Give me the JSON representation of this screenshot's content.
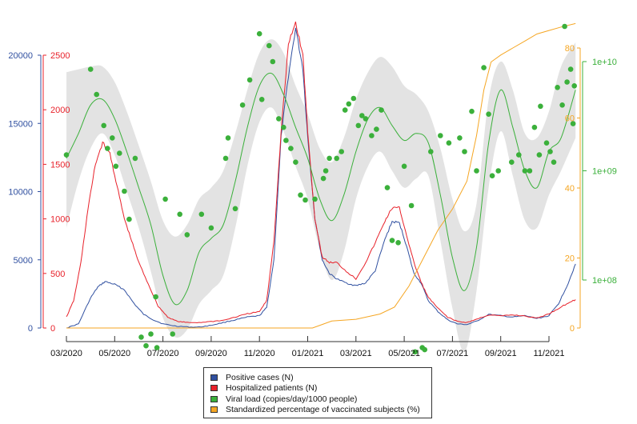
{
  "chart_data": {
    "type": "line",
    "title": "",
    "xlabel": "",
    "x_unit": "months since 03/2020",
    "x_ticks": [
      "03/2020",
      "05/2020",
      "07/2020",
      "09/2020",
      "11/2020",
      "01/2021",
      "03/2021",
      "05/2021",
      "07/2021",
      "09/2021",
      "11/2021"
    ],
    "x_range": [
      0,
      21.1
    ],
    "axes": {
      "left_blue": {
        "label": "Positive cases (N)",
        "range": [
          0,
          20000
        ],
        "ticks": [
          0,
          5000,
          10000,
          15000,
          20000
        ],
        "color": "#3050a0"
      },
      "left_red": {
        "label": "Hospitalized patients (N)",
        "range": [
          0,
          2500
        ],
        "ticks": [
          0,
          500,
          1000,
          1500,
          2000,
          2500
        ],
        "color": "#e8212a"
      },
      "right_orange": {
        "label": "Standardized percentage of vaccinated subjects (%)",
        "range": [
          0,
          80
        ],
        "ticks": [
          0,
          20,
          40,
          60,
          80
        ],
        "color": "#f5a623"
      },
      "right_green": {
        "label": "Viral load (copies/day/1000 people)",
        "scale": "log10",
        "ticks": [
          "1e+08",
          "1e+09",
          "1e+10"
        ],
        "tick_values": [
          100000000,
          1000000000,
          10000000000
        ],
        "color": "#3bb03b"
      }
    },
    "series": [
      {
        "name": "Positive cases (N)",
        "axis": "left_blue",
        "color": "#3050a0",
        "x": [
          0,
          0.5,
          1,
          1.3,
          1.6,
          2.0,
          2.4,
          2.8,
          3.2,
          3.6,
          4.0,
          4.5,
          5.0,
          5.5,
          6.0,
          6.5,
          7.0,
          7.5,
          8.0,
          8.3,
          8.6,
          8.9,
          9.2,
          9.5,
          9.8,
          10.0,
          10.3,
          10.6,
          10.9,
          11.2,
          11.6,
          12.0,
          12.4,
          12.8,
          13.2,
          13.5,
          13.8,
          14.1,
          14.4,
          14.7,
          15.0,
          15.4,
          15.8,
          16.2,
          16.6,
          17.0,
          17.5,
          18.0,
          18.5,
          19.0,
          19.5,
          20.0,
          20.4,
          20.8,
          21.1
        ],
        "values": [
          0,
          300,
          2200,
          3000,
          3400,
          3200,
          2800,
          1800,
          1000,
          600,
          300,
          150,
          80,
          60,
          200,
          400,
          600,
          800,
          900,
          1500,
          5000,
          14000,
          18500,
          22000,
          19000,
          14000,
          8000,
          5000,
          4000,
          3600,
          3300,
          3100,
          3300,
          4200,
          6500,
          7800,
          7700,
          6000,
          4000,
          3300,
          2000,
          1200,
          600,
          300,
          250,
          500,
          1000,
          900,
          800,
          900,
          700,
          900,
          1800,
          3300,
          4700
        ]
      },
      {
        "name": "Hospitalized patients (N)",
        "axis": "left_red",
        "color": "#e8212a",
        "x": [
          0,
          0.3,
          0.6,
          0.9,
          1.2,
          1.5,
          1.8,
          2.1,
          2.4,
          2.7,
          3.0,
          3.4,
          3.8,
          4.2,
          4.6,
          5.0,
          5.5,
          6.0,
          6.5,
          7.0,
          7.5,
          8.0,
          8.3,
          8.6,
          8.9,
          9.2,
          9.5,
          9.8,
          10.0,
          10.3,
          10.6,
          10.9,
          11.2,
          11.6,
          12.0,
          12.4,
          12.8,
          13.2,
          13.5,
          13.8,
          14.1,
          14.4,
          14.7,
          15.0,
          15.4,
          15.8,
          16.2,
          16.6,
          17.0,
          17.5,
          18.0,
          18.5,
          19.0,
          19.5,
          20.0,
          20.4,
          20.8,
          21.1
        ],
        "values": [
          100,
          250,
          600,
          1100,
          1500,
          1700,
          1600,
          1300,
          1000,
          800,
          600,
          400,
          200,
          100,
          60,
          50,
          50,
          60,
          70,
          100,
          130,
          150,
          250,
          800,
          1800,
          2600,
          2800,
          2500,
          1800,
          1000,
          650,
          600,
          600,
          520,
          450,
          600,
          780,
          980,
          1100,
          1100,
          850,
          600,
          420,
          280,
          180,
          100,
          60,
          50,
          80,
          120,
          110,
          120,
          110,
          90,
          130,
          180,
          230,
          260
        ]
      },
      {
        "name": "Standardized percentage of vaccinated subjects (%)",
        "axis": "right_orange",
        "color": "#f5a623",
        "x": [
          0,
          10.2,
          10.6,
          11.0,
          12.0,
          13.0,
          13.6,
          14.2,
          14.8,
          15.4,
          16.0,
          16.6,
          17.0,
          17.3,
          17.6,
          18.0,
          18.5,
          19.0,
          19.5,
          20.0,
          20.5,
          21.1
        ],
        "values": [
          0,
          0,
          1,
          2,
          2.5,
          4,
          6,
          12,
          20,
          28,
          34,
          42,
          55,
          68,
          76,
          78,
          80,
          82,
          84,
          85,
          86,
          87
        ]
      },
      {
        "name": "Viral load (copies/day/1000 people) - smoothed",
        "axis": "right_green",
        "color": "#3bb03b",
        "x": [
          0,
          0.5,
          1.0,
          1.5,
          2.0,
          2.5,
          3.0,
          3.5,
          4.0,
          4.5,
          5.0,
          5.5,
          6.0,
          6.5,
          7.0,
          7.5,
          8.0,
          8.5,
          9.0,
          9.5,
          10.0,
          10.5,
          11.0,
          11.5,
          12.0,
          12.5,
          13.0,
          13.5,
          14.0,
          14.5,
          15.0,
          15.5,
          16.0,
          16.5,
          17.0,
          17.5,
          18.0,
          18.5,
          19.0,
          19.5,
          20.0,
          20.5,
          21.1
        ],
        "values": [
          1300000000.0,
          2200000000.0,
          4000000000.0,
          4500000000.0,
          3000000000.0,
          1500000000.0,
          700000000.0,
          320000000.0,
          110000000.0,
          60000000.0,
          80000000.0,
          180000000.0,
          240000000.0,
          320000000.0,
          800000000.0,
          2500000000.0,
          6000000000.0,
          7800000000.0,
          5000000000.0,
          2500000000.0,
          1300000000.0,
          550000000.0,
          350000000.0,
          600000000.0,
          1500000000.0,
          3000000000.0,
          3800000000.0,
          2600000000.0,
          1900000000.0,
          2200000000.0,
          1800000000.0,
          600000000.0,
          160000000.0,
          80000000.0,
          200000000.0,
          1800000000.0,
          5500000000.0,
          2500000000.0,
          1000000000.0,
          700000000.0,
          1500000000.0,
          2000000000.0,
          5500000000.0
        ]
      }
    ],
    "viral_load_ci": {
      "x": [
        0,
        0.5,
        1.0,
        1.5,
        2.0,
        2.5,
        3.0,
        3.5,
        4.0,
        4.5,
        5.0,
        5.5,
        6.0,
        6.5,
        7.0,
        7.5,
        8.0,
        8.5,
        9.0,
        9.5,
        10.0,
        10.5,
        11.0,
        11.5,
        12.0,
        12.5,
        13.0,
        13.5,
        14.0,
        14.5,
        15.0,
        15.5,
        16.0,
        16.5,
        17.0,
        17.5,
        18.0,
        18.5,
        19.0,
        19.5,
        20.0,
        20.5,
        21.1
      ],
      "upper": [
        8000000000.0,
        8500000000.0,
        9000000000.0,
        9000000000.0,
        6500000000.0,
        3500000000.0,
        1700000000.0,
        800000000.0,
        350000000.0,
        250000000.0,
        320000000.0,
        550000000.0,
        700000000.0,
        1000000000.0,
        2200000000.0,
        5500000000.0,
        12000000000.0,
        16000000000.0,
        12000000000.0,
        6000000000.0,
        3300000000.0,
        1600000000.0,
        1200000000.0,
        2000000000.0,
        4500000000.0,
        8000000000.0,
        11000000000.0,
        9000000000.0,
        6000000000.0,
        5000000000.0,
        3500000000.0,
        1600000000.0,
        550000000.0,
        280000000.0,
        500000000.0,
        4500000000.0,
        10000000000.0,
        5500000000.0,
        2200000000.0,
        2000000000.0,
        3500000000.0,
        9000000000.0,
        15000000000.0
      ],
      "lower": [
        300000000.0,
        800000000.0,
        1600000000.0,
        2200000000.0,
        1400000000.0,
        650000000.0,
        300000000.0,
        120000000.0,
        45000000.0,
        30000000.0,
        35000000.0,
        60000000.0,
        80000000.0,
        110000000.0,
        300000000.0,
        1100000000.0,
        2800000000.0,
        3800000000.0,
        2300000000.0,
        1100000000.0,
        550000000.0,
        190000000.0,
        100000000.0,
        180000000.0,
        550000000.0,
        1100000000.0,
        1500000000.0,
        1000000000.0,
        700000000.0,
        850000000.0,
        900000000.0,
        230000000.0,
        55000000.0,
        22000000.0,
        80000000.0,
        700000000.0,
        2300000000.0,
        900000000.0,
        350000000.0,
        300000000.0,
        600000000.0,
        1000000000.0,
        2000000000.0
      ]
    },
    "viral_load_points": {
      "x": [
        0.0,
        1.0,
        1.25,
        1.55,
        1.7,
        1.9,
        2.05,
        2.2,
        2.4,
        2.6,
        2.85,
        3.1,
        3.3,
        3.5,
        3.7,
        3.75,
        4.1,
        4.4,
        4.7,
        5.0,
        5.6,
        6.0,
        6.6,
        6.7,
        7.0,
        7.3,
        7.6,
        8.0,
        8.1,
        8.4,
        8.55,
        8.8,
        9.0,
        9.1,
        9.3,
        9.5,
        9.7,
        9.9,
        10.3,
        10.65,
        10.75,
        10.9,
        11.2,
        11.4,
        11.55,
        11.7,
        11.9,
        12.1,
        12.25,
        12.4,
        12.65,
        12.85,
        13.05,
        13.3,
        13.5,
        13.75,
        14.0,
        14.3,
        14.45,
        14.75,
        14.85,
        15.1,
        15.5,
        15.85,
        16.3,
        16.5,
        16.8,
        17.0,
        17.3,
        17.5,
        17.65,
        17.9,
        18.45,
        18.75,
        19.0,
        19.2,
        19.4,
        19.6,
        19.65,
        19.9,
        20.05,
        20.2,
        20.35,
        20.55,
        20.65,
        20.75,
        20.9,
        21.0,
        21.05
      ],
      "values": [
        1400000000.0,
        8500000000.0,
        5000000000.0,
        2600000000.0,
        1600000000.0,
        2000000000.0,
        1100000000.0,
        1450000000.0,
        650000000.0,
        360000000.0,
        1300000000.0,
        30000000.0,
        25000000.0,
        32000000.0,
        70000000.0,
        24000000.0,
        550000000.0,
        32000000.0,
        400000000.0,
        260000000.0,
        400000000.0,
        300000000.0,
        1300000000.0,
        2000000000.0,
        450000000.0,
        4000000000.0,
        6800000000.0,
        18000000000.0,
        4500000000.0,
        14000000000.0,
        10000000000.0,
        3000000000.0,
        2500000000.0,
        1900000000.0,
        1600000000.0,
        1200000000.0,
        600000000.0,
        540000000.0,
        550000000.0,
        850000000.0,
        1000000000.0,
        1300000000.0,
        1300000000.0,
        1500000000.0,
        3600000000.0,
        4100000000.0,
        4600000000.0,
        2600000000.0,
        3200000000.0,
        3000000000.0,
        2100000000.0,
        2400000000.0,
        3600000000.0,
        700000000.0,
        230000000.0,
        220000000.0,
        1100000000.0,
        480000000.0,
        22000000.0,
        24000000.0,
        23000000.0,
        1500000000.0,
        2100000000.0,
        1800000000.0,
        2000000000.0,
        1500000000.0,
        3500000000.0,
        1000000000.0,
        8800000000.0,
        3300000000.0,
        900000000.0,
        1000000000.0,
        1200000000.0,
        1400000000.0,
        1000000000.0,
        1000000000.0,
        2500000000.0,
        1400000000.0,
        3900000000.0,
        1800000000.0,
        1500000000.0,
        1200000000.0,
        5800000000.0,
        4000000000.0,
        21000000000.0,
        6500000000.0,
        8500000000.0,
        2700000000.0,
        6000000000.0
      ]
    },
    "legend": {
      "placement": "bottom-center",
      "entries": [
        {
          "label": "Positive cases (N)",
          "color": "#3050a0"
        },
        {
          "label": "Hospitalized patients (N)",
          "color": "#e8212a"
        },
        {
          "label": "Viral load (copies/day/1000 people)",
          "color": "#3bb03b"
        },
        {
          "label": "Standardized percentage of vaccinated subjects (%)",
          "color": "#f5a623"
        }
      ]
    },
    "ci_color": "#e3e3e3"
  }
}
